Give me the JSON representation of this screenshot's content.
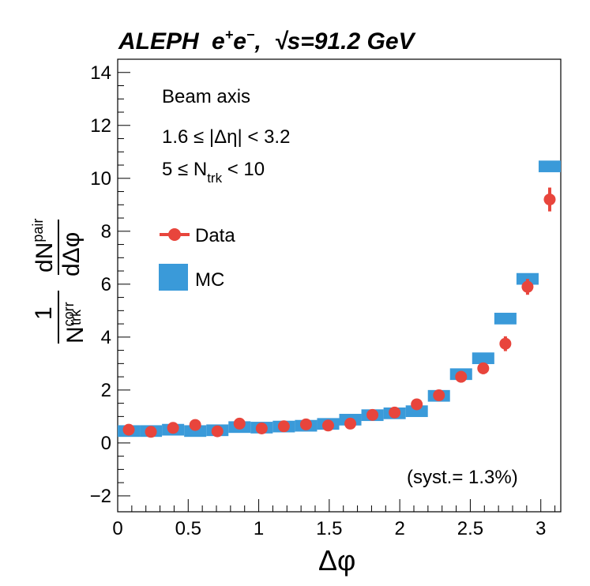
{
  "chart_data": {
    "type": "scatter",
    "title": "ALEPH e⁺e⁻,  √s=91.2 GeV",
    "title_parts": {
      "experiment": "ALEPH",
      "beam": "e",
      "plus": "+",
      "minus": "−",
      "sqrt_sym": "√",
      "energy": "s=91.2 GeV"
    },
    "xlabel": "Δφ",
    "ylabel": {
      "one": "1",
      "n": "N",
      "n_sup": "corr",
      "n_sub": "trk",
      "dn": "dN",
      "dn_sup": "pair",
      "dphi": "dΔφ"
    },
    "xlim": [
      0,
      3.14159
    ],
    "ylim": [
      -2.6,
      14.5
    ],
    "xticks": [
      0,
      0.5,
      1,
      1.5,
      2,
      2.5,
      3
    ],
    "xtick_labels": [
      "0",
      "0.5",
      "1",
      "1.5",
      "2",
      "2.5",
      "3"
    ],
    "yticks": [
      -2,
      0,
      2,
      4,
      6,
      8,
      10,
      12,
      14
    ],
    "ytick_labels": [
      "−2",
      "0",
      "2",
      "4",
      "6",
      "8",
      "10",
      "12",
      "14"
    ],
    "annotations": {
      "line1": "Beam axis",
      "line2": "1.6 ≤ |Δη| < 3.2",
      "line3_pre": "5 ≤ N",
      "line3_sub": "trk",
      "line3_post": " < 10",
      "syst": "(syst.= 1.3%)"
    },
    "legend": [
      {
        "label": "Data",
        "color": "#e8453c",
        "marker": "circle"
      },
      {
        "label": "MC",
        "color": "#3a9ad9",
        "marker": "box"
      }
    ],
    "series": [
      {
        "name": "Data",
        "color": "#e8453c",
        "x": [
          0.0785,
          0.2356,
          0.3927,
          0.5498,
          0.7069,
          0.8639,
          1.021,
          1.1781,
          1.3352,
          1.4923,
          1.6493,
          1.8064,
          1.9635,
          2.1206,
          2.2777,
          2.4347,
          2.5918,
          2.7489,
          2.906,
          3.0631
        ],
        "values": [
          0.5,
          0.42,
          0.57,
          0.68,
          0.44,
          0.73,
          0.55,
          0.63,
          0.7,
          0.66,
          0.73,
          1.06,
          1.15,
          1.46,
          1.8,
          2.5,
          2.82,
          3.75,
          5.9,
          9.2
        ],
        "errors": [
          0.12,
          0.12,
          0.12,
          0.12,
          0.12,
          0.12,
          0.12,
          0.12,
          0.12,
          0.12,
          0.14,
          0.14,
          0.14,
          0.16,
          0.18,
          0.22,
          0.22,
          0.28,
          0.3,
          0.45
        ]
      },
      {
        "name": "MC",
        "color": "#3a9ad9",
        "x": [
          0.0785,
          0.2356,
          0.3927,
          0.5498,
          0.7069,
          0.8639,
          1.021,
          1.1781,
          1.3352,
          1.4923,
          1.6493,
          1.8064,
          1.9635,
          2.1206,
          2.2777,
          2.4347,
          2.5918,
          2.7489,
          2.906,
          3.0631
        ],
        "values": [
          0.45,
          0.45,
          0.5,
          0.45,
          0.48,
          0.6,
          0.58,
          0.62,
          0.65,
          0.72,
          0.88,
          1.05,
          1.12,
          1.2,
          1.78,
          2.6,
          3.2,
          4.7,
          6.2,
          10.45
        ],
        "half_height": 0.22
      }
    ]
  }
}
